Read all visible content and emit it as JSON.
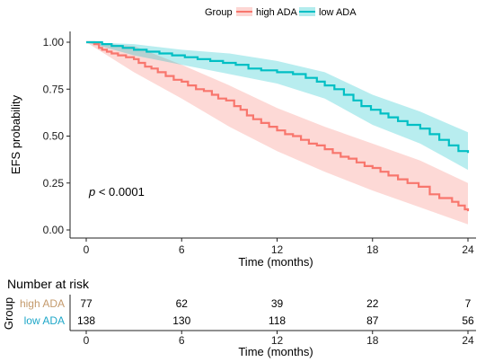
{
  "chart_data": {
    "type": "line",
    "legend": {
      "title": "Group",
      "placement": "top",
      "items": [
        {
          "label": "high ADA",
          "color": "#f8766d"
        },
        {
          "label": "low ADA",
          "color": "#00bfc4"
        }
      ]
    },
    "xlabel": "Time (months)",
    "ylabel": "EFS probability",
    "xlim": [
      0,
      24
    ],
    "ylim": [
      0,
      1
    ],
    "x_ticks": [
      "0",
      "6",
      "12",
      "18",
      "24"
    ],
    "y_ticks": [
      "0.00",
      "0.25",
      "0.50",
      "0.75",
      "1.00"
    ],
    "grid": false,
    "annotation": {
      "prefix": "p",
      "text": " < 0.0001"
    },
    "series": [
      {
        "name": "high ADA",
        "color": "#f8766d",
        "step_points": [
          [
            0,
            1.0
          ],
          [
            0.5,
            0.99
          ],
          [
            0.8,
            0.97
          ],
          [
            1,
            0.96
          ],
          [
            1.3,
            0.95
          ],
          [
            1.6,
            0.94
          ],
          [
            2,
            0.93
          ],
          [
            2.5,
            0.92
          ],
          [
            3,
            0.91
          ],
          [
            3.3,
            0.89
          ],
          [
            3.7,
            0.87
          ],
          [
            4.1,
            0.86
          ],
          [
            4.5,
            0.84
          ],
          [
            5,
            0.82
          ],
          [
            5.5,
            0.8
          ],
          [
            6,
            0.79
          ],
          [
            6.4,
            0.77
          ],
          [
            6.9,
            0.75
          ],
          [
            7.4,
            0.74
          ],
          [
            7.9,
            0.72
          ],
          [
            8.3,
            0.7
          ],
          [
            8.8,
            0.69
          ],
          [
            9.3,
            0.66
          ],
          [
            9.7,
            0.64
          ],
          [
            10.1,
            0.61
          ],
          [
            10.5,
            0.59
          ],
          [
            11,
            0.57
          ],
          [
            11.5,
            0.55
          ],
          [
            12,
            0.53
          ],
          [
            12.5,
            0.51
          ],
          [
            13,
            0.5
          ],
          [
            13.5,
            0.48
          ],
          [
            14,
            0.46
          ],
          [
            14.5,
            0.45
          ],
          [
            15,
            0.43
          ],
          [
            15.5,
            0.41
          ],
          [
            16,
            0.39
          ],
          [
            16.5,
            0.38
          ],
          [
            17,
            0.36
          ],
          [
            17.5,
            0.34
          ],
          [
            18,
            0.33
          ],
          [
            18.5,
            0.31
          ],
          [
            19,
            0.29
          ],
          [
            19.6,
            0.27
          ],
          [
            20.2,
            0.25
          ],
          [
            20.9,
            0.23
          ],
          [
            21.6,
            0.19
          ],
          [
            22.2,
            0.17
          ],
          [
            23,
            0.15
          ],
          [
            23.4,
            0.13
          ],
          [
            23.8,
            0.11
          ],
          [
            24,
            0.1
          ]
        ],
        "band": {
          "lower": [
            [
              0,
              1.0
            ],
            [
              3,
              0.84
            ],
            [
              6,
              0.7
            ],
            [
              9,
              0.55
            ],
            [
              12,
              0.42
            ],
            [
              15,
              0.31
            ],
            [
              18,
              0.21
            ],
            [
              21,
              0.12
            ],
            [
              24,
              0.03
            ]
          ],
          "upper": [
            [
              0,
              1.0
            ],
            [
              3,
              0.98
            ],
            [
              6,
              0.88
            ],
            [
              9,
              0.77
            ],
            [
              12,
              0.65
            ],
            [
              15,
              0.55
            ],
            [
              18,
              0.46
            ],
            [
              21,
              0.37
            ],
            [
              24,
              0.25
            ]
          ]
        }
      },
      {
        "name": "low ADA",
        "color": "#00bfc4",
        "step_points": [
          [
            0,
            1.0
          ],
          [
            1,
            0.99
          ],
          [
            1.6,
            0.98
          ],
          [
            2.3,
            0.97
          ],
          [
            3,
            0.96
          ],
          [
            3.8,
            0.95
          ],
          [
            4.6,
            0.94
          ],
          [
            5.4,
            0.93
          ],
          [
            6.2,
            0.92
          ],
          [
            7,
            0.91
          ],
          [
            7.8,
            0.9
          ],
          [
            8.6,
            0.89
          ],
          [
            9.4,
            0.88
          ],
          [
            10.2,
            0.86
          ],
          [
            11,
            0.85
          ],
          [
            12,
            0.84
          ],
          [
            13,
            0.83
          ],
          [
            13.8,
            0.81
          ],
          [
            14.5,
            0.79
          ],
          [
            15,
            0.77
          ],
          [
            15.6,
            0.75
          ],
          [
            16.2,
            0.72
          ],
          [
            16.8,
            0.69
          ],
          [
            17.3,
            0.66
          ],
          [
            17.9,
            0.64
          ],
          [
            18.5,
            0.62
          ],
          [
            19,
            0.6
          ],
          [
            19.6,
            0.58
          ],
          [
            20.2,
            0.56
          ],
          [
            21,
            0.54
          ],
          [
            21.6,
            0.51
          ],
          [
            22.2,
            0.48
          ],
          [
            22.8,
            0.45
          ],
          [
            23.4,
            0.42
          ],
          [
            24,
            0.41
          ]
        ],
        "band": {
          "lower": [
            [
              0,
              1.0
            ],
            [
              3,
              0.93
            ],
            [
              6,
              0.88
            ],
            [
              9,
              0.83
            ],
            [
              12,
              0.78
            ],
            [
              15,
              0.7
            ],
            [
              18,
              0.56
            ],
            [
              21,
              0.46
            ],
            [
              24,
              0.32
            ]
          ],
          "upper": [
            [
              0,
              1.0
            ],
            [
              3,
              0.99
            ],
            [
              6,
              0.96
            ],
            [
              9,
              0.94
            ],
            [
              12,
              0.9
            ],
            [
              15,
              0.84
            ],
            [
              18,
              0.72
            ],
            [
              21,
              0.63
            ],
            [
              24,
              0.52
            ]
          ]
        }
      }
    ]
  },
  "risk_table": {
    "title": "Number at risk",
    "ylabel": "Group",
    "xlabel": "Time (months)",
    "x_ticks": [
      "0",
      "6",
      "12",
      "18",
      "24"
    ],
    "rows": [
      {
        "label": "high ADA",
        "color": "#c49a6c",
        "values": [
          "77",
          "62",
          "39",
          "22",
          "7"
        ]
      },
      {
        "label": "low ADA",
        "color": "#1ea7c8",
        "values": [
          "138",
          "130",
          "118",
          "87",
          "56"
        ]
      }
    ]
  }
}
